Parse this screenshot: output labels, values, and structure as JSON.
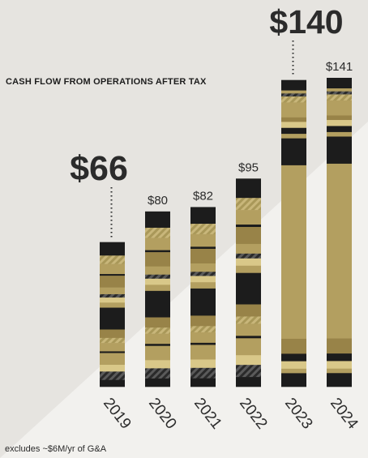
{
  "chart_data": {
    "type": "bar",
    "title": "CASH FLOW FROM OPERATIONS AFTER TAX",
    "footnote": "excludes ~$6M/yr of G&A",
    "unit": "$M",
    "categories": [
      "2019",
      "2020",
      "2021",
      "2022",
      "2023",
      "2024"
    ],
    "values": [
      66,
      80,
      82,
      95,
      140,
      141
    ],
    "value_labels": [
      "$66",
      "$80",
      "$82",
      "$95",
      "$140",
      "$141"
    ],
    "highlighted": [
      "2019",
      "2023"
    ],
    "ylim": [
      0,
      141
    ],
    "xlabel": "",
    "ylabel": "",
    "grid": false,
    "colors": {
      "dark": "#1c1c1c",
      "gold": "#b39f60",
      "gold_mid": "#988348",
      "gold_light": "#d9c889",
      "hatch_base": "#c8b67a",
      "hatch_stripe": "#a99859",
      "dark_hatch_stripe": "#5a5a5a",
      "text": "#2b2b2b",
      "background": "#e6e4e0",
      "panel": "#f2f1ee"
    }
  }
}
